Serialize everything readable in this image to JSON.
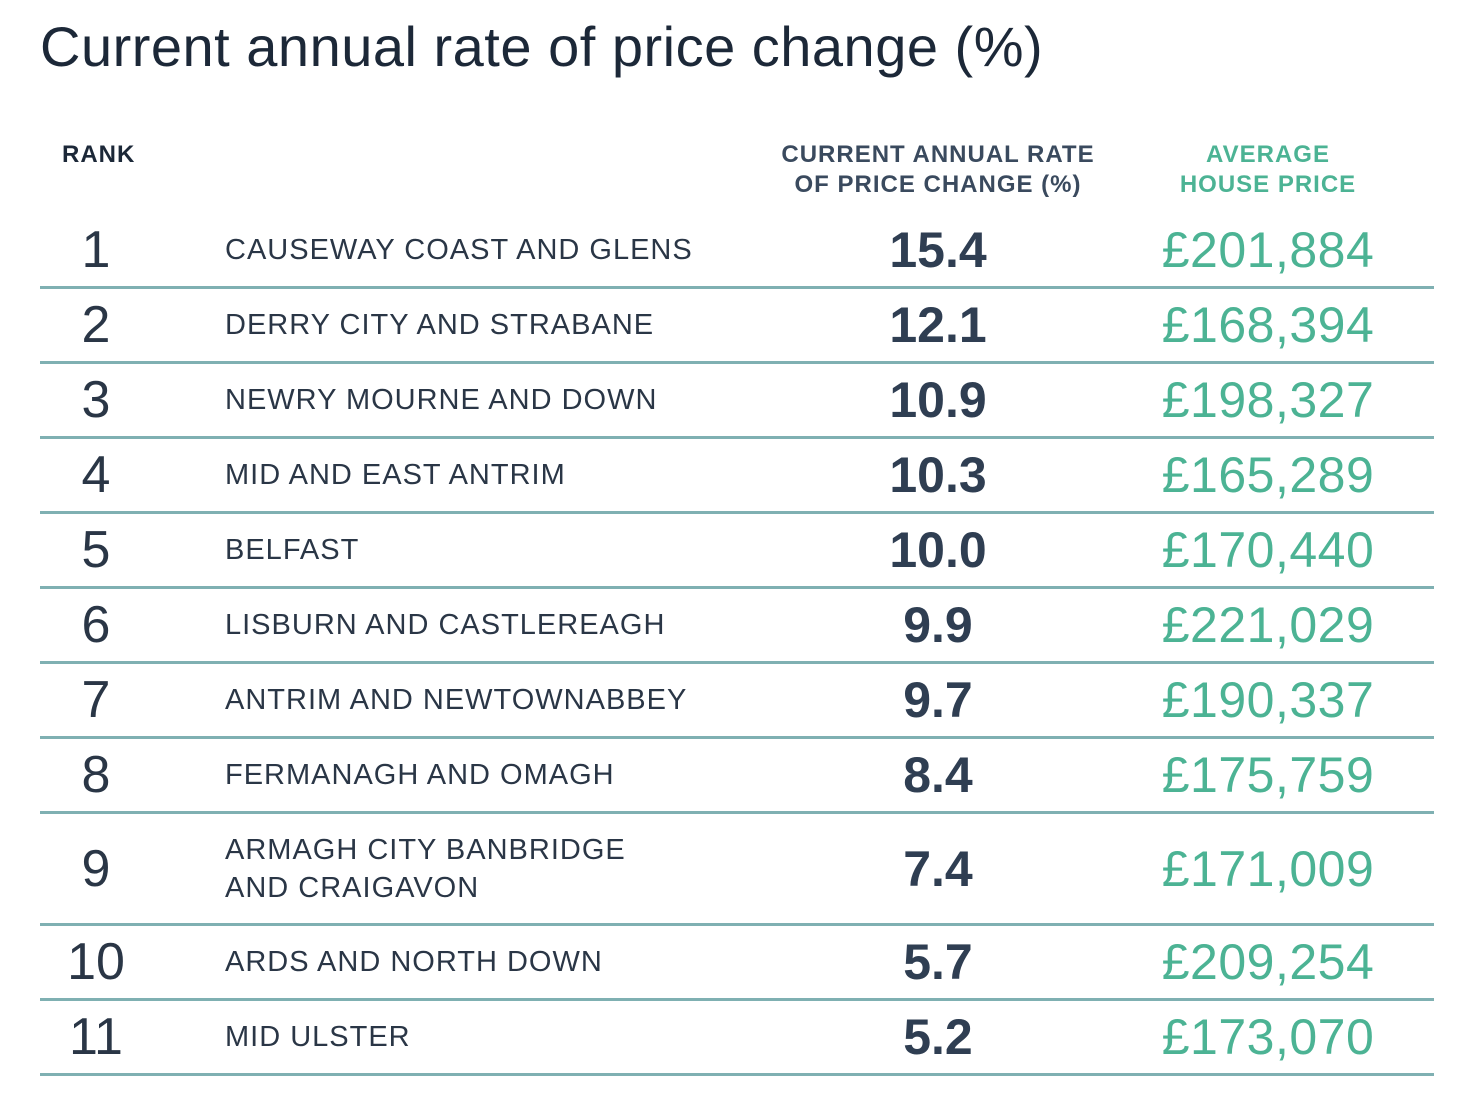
{
  "title": "Current annual rate of price change (%)",
  "headers": {
    "rank": "RANK",
    "rate_line1": "CURRENT ANNUAL RATE",
    "rate_line2": "OF PRICE CHANGE (%)",
    "price_line1": "AVERAGE",
    "price_line2": "HOUSE PRICE"
  },
  "chart_data": {
    "type": "table",
    "title": "Current annual rate of price change (%)",
    "columns": [
      "RANK",
      "",
      "CURRENT ANNUAL RATE OF PRICE CHANGE (%)",
      "AVERAGE HOUSE PRICE"
    ],
    "rows": [
      {
        "rank": "1",
        "region": "CAUSEWAY COAST AND GLENS",
        "rate": "15.4",
        "price": "£201,884"
      },
      {
        "rank": "2",
        "region": "DERRY CITY AND STRABANE",
        "rate": "12.1",
        "price": "£168,394"
      },
      {
        "rank": "3",
        "region": "NEWRY MOURNE AND DOWN",
        "rate": "10.9",
        "price": "£198,327"
      },
      {
        "rank": "4",
        "region": "MID AND EAST ANTRIM",
        "rate": "10.3",
        "price": "£165,289"
      },
      {
        "rank": "5",
        "region": "BELFAST",
        "rate": "10.0",
        "price": "£170,440"
      },
      {
        "rank": "6",
        "region": "LISBURN AND CASTLEREAGH",
        "rate": "9.9",
        "price": "£221,029"
      },
      {
        "rank": "7",
        "region": "ANTRIM AND NEWTOWNABBEY",
        "rate": "9.7",
        "price": "£190,337"
      },
      {
        "rank": "8",
        "region": "FERMANAGH AND OMAGH",
        "rate": "8.4",
        "price": "£175,759"
      },
      {
        "rank": "9",
        "region": "ARMAGH CITY BANBRIDGE\nAND CRAIGAVON",
        "rate": "7.4",
        "price": "£171,009"
      },
      {
        "rank": "10",
        "region": "ARDS AND NORTH DOWN",
        "rate": "5.7",
        "price": "£209,254"
      },
      {
        "rank": "11",
        "region": "MID ULSTER",
        "rate": "5.2",
        "price": "£173,070"
      }
    ]
  },
  "colors": {
    "text_dark": "#1c2838",
    "rate_text": "#2f3e52",
    "price_green": "#4cb394",
    "divider": "#7fb0b2"
  }
}
